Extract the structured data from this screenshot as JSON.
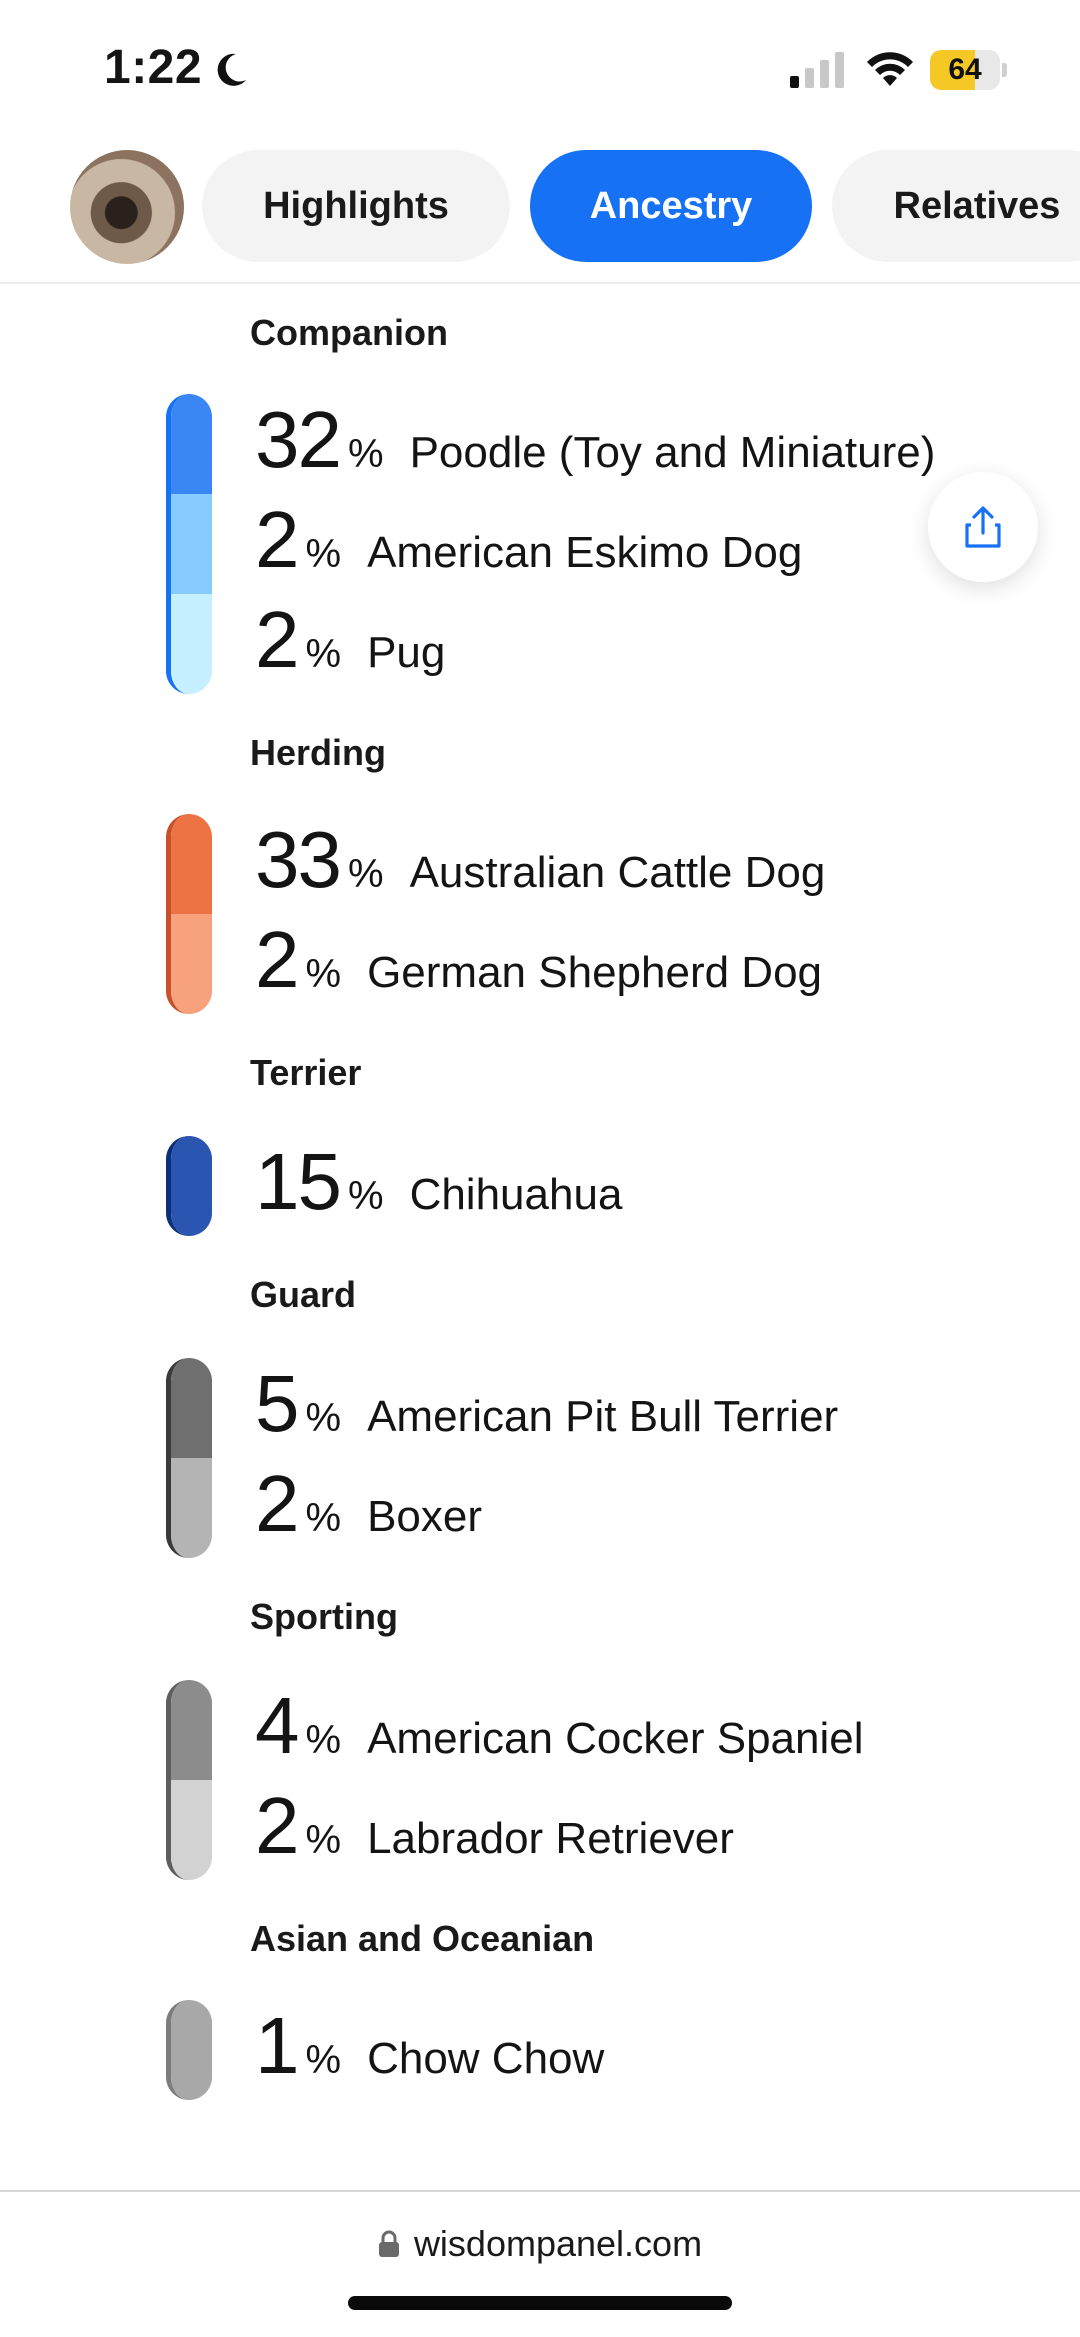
{
  "status_bar": {
    "time": "1:22",
    "battery_percent": "64",
    "battery_level": 0.64,
    "signal_bars_active": 1,
    "icons": [
      "moon-icon",
      "signal-icon",
      "wifi-icon",
      "battery-icon"
    ]
  },
  "tabs": [
    {
      "label": "Highlights",
      "active": false
    },
    {
      "label": "Ancestry",
      "active": true
    },
    {
      "label": "Relatives",
      "active": false
    }
  ],
  "groups": [
    {
      "title": "Companion",
      "breeds": [
        {
          "percent": "32",
          "name": "Poodle (Toy and Miniature)",
          "color": "#3b86f5"
        },
        {
          "percent": "2",
          "name": "American Eskimo Dog",
          "color": "#86ccff"
        },
        {
          "percent": "2",
          "name": "Pug",
          "color": "#c6f0ff"
        }
      ],
      "bar_edge_color": "#1671f4"
    },
    {
      "title": "Herding",
      "breeds": [
        {
          "percent": "33",
          "name": "Australian Cattle Dog",
          "color": "#ee7344"
        },
        {
          "percent": "2",
          "name": "German Shepherd Dog",
          "color": "#f7a27c"
        }
      ],
      "bar_edge_color": "#c8502b"
    },
    {
      "title": "Terrier",
      "breeds": [
        {
          "percent": "15",
          "name": "Chihuahua",
          "color": "#2a55b0"
        }
      ],
      "bar_edge_color": "#0e2f7a"
    },
    {
      "title": "Guard",
      "breeds": [
        {
          "percent": "5",
          "name": "American Pit Bull Terrier",
          "color": "#6f6f6f"
        },
        {
          "percent": "2",
          "name": "Boxer",
          "color": "#b4b4b4"
        }
      ],
      "bar_edge_color": "#3a3a3a"
    },
    {
      "title": "Sporting",
      "breeds": [
        {
          "percent": "4",
          "name": "American Cocker Spaniel",
          "color": "#8c8c8c"
        },
        {
          "percent": "2",
          "name": "Labrador Retriever",
          "color": "#d2d2d2"
        }
      ],
      "bar_edge_color": "#5e5e5e"
    },
    {
      "title": "Asian and Oceanian",
      "breeds": [
        {
          "percent": "1",
          "name": "Chow Chow",
          "color": "#a8a8a8"
        }
      ],
      "bar_edge_color": "#7d7d7d"
    }
  ],
  "percent_sign": "%",
  "share_button": {
    "icon": "share-icon"
  },
  "url_bar": {
    "icon": "lock-icon",
    "url": "wisdompanel.com"
  },
  "accent_color": "#1671f4"
}
